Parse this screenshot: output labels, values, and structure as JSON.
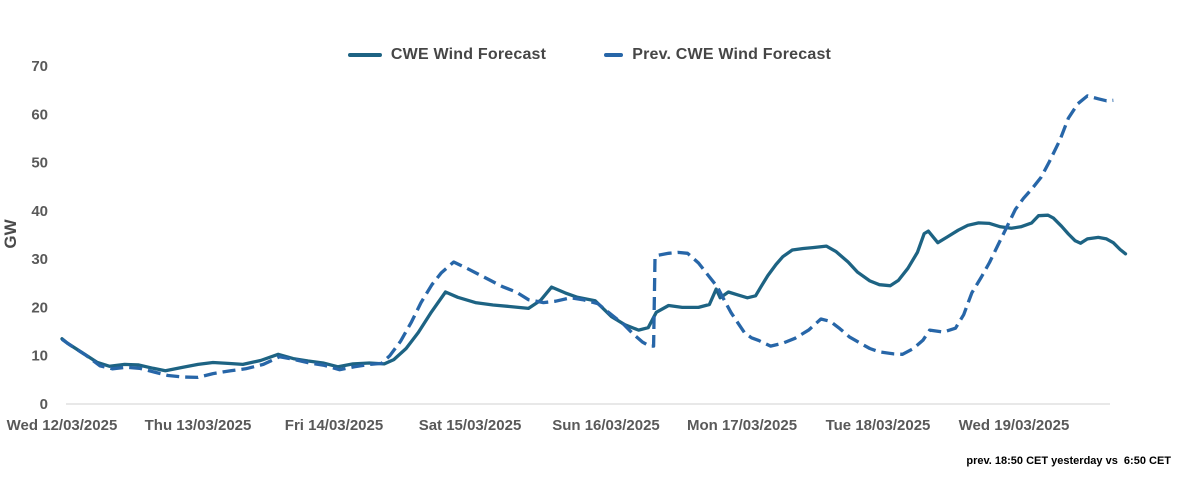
{
  "chart_data": {
    "type": "line",
    "title": "",
    "ylabel": "GW",
    "xlabel": "",
    "ylim": [
      0,
      70
    ],
    "yticks": [
      0,
      10,
      20,
      30,
      40,
      50,
      60,
      70
    ],
    "grid": false,
    "legend_position": "top-center",
    "note": "prev. 18:50 CET yesterday vs  6:50 CET",
    "x_categories": [
      "Wed 12/03/2025",
      "Thu 13/03/2025",
      "Fri 14/03/2025",
      "Sat 15/03/2025",
      "Sun 16/03/2025",
      "Mon 17/03/2025",
      "Tue 18/03/2025",
      "Wed 19/03/2025"
    ],
    "x_unit": "days-from-first-label",
    "xlim_days": [
      0,
      7.85
    ],
    "axis_color": "#d9d9d9",
    "series": [
      {
        "name": "CWE Wind Forecast",
        "style": "solid",
        "color": "#1d6383",
        "points": [
          [
            0.0,
            13.5
          ],
          [
            0.04,
            12.6
          ],
          [
            0.15,
            10.6
          ],
          [
            0.26,
            8.6
          ],
          [
            0.35,
            7.8
          ],
          [
            0.46,
            8.2
          ],
          [
            0.56,
            8.1
          ],
          [
            0.67,
            7.4
          ],
          [
            0.76,
            6.9
          ],
          [
            0.89,
            7.6
          ],
          [
            1.0,
            8.2
          ],
          [
            1.11,
            8.6
          ],
          [
            1.22,
            8.4
          ],
          [
            1.33,
            8.2
          ],
          [
            1.46,
            9.0
          ],
          [
            1.59,
            10.3
          ],
          [
            1.7,
            9.4
          ],
          [
            1.81,
            8.9
          ],
          [
            1.92,
            8.5
          ],
          [
            2.03,
            7.7
          ],
          [
            2.14,
            8.3
          ],
          [
            2.26,
            8.5
          ],
          [
            2.37,
            8.3
          ],
          [
            2.44,
            9.2
          ],
          [
            2.53,
            11.5
          ],
          [
            2.62,
            14.8
          ],
          [
            2.71,
            18.8
          ],
          [
            2.82,
            23.2
          ],
          [
            2.91,
            22.1
          ],
          [
            3.04,
            21.0
          ],
          [
            3.17,
            20.5
          ],
          [
            3.29,
            20.2
          ],
          [
            3.43,
            19.8
          ],
          [
            3.52,
            21.5
          ],
          [
            3.6,
            24.2
          ],
          [
            3.7,
            23.0
          ],
          [
            3.79,
            22.1
          ],
          [
            3.92,
            21.4
          ],
          [
            4.04,
            18.1
          ],
          [
            4.14,
            16.4
          ],
          [
            4.24,
            15.3
          ],
          [
            4.31,
            15.8
          ],
          [
            4.37,
            19.0
          ],
          [
            4.46,
            20.4
          ],
          [
            4.56,
            20.0
          ],
          [
            4.68,
            20.0
          ],
          [
            4.76,
            20.6
          ],
          [
            4.81,
            23.8
          ],
          [
            4.84,
            22.0
          ],
          [
            4.9,
            23.2
          ],
          [
            4.97,
            22.6
          ],
          [
            5.04,
            22.0
          ],
          [
            5.1,
            22.4
          ],
          [
            5.14,
            24.3
          ],
          [
            5.19,
            26.6
          ],
          [
            5.25,
            28.9
          ],
          [
            5.3,
            30.5
          ],
          [
            5.37,
            31.9
          ],
          [
            5.45,
            32.2
          ],
          [
            5.52,
            32.4
          ],
          [
            5.62,
            32.7
          ],
          [
            5.69,
            31.6
          ],
          [
            5.78,
            29.4
          ],
          [
            5.85,
            27.3
          ],
          [
            5.94,
            25.5
          ],
          [
            6.01,
            24.7
          ],
          [
            6.09,
            24.5
          ],
          [
            6.15,
            25.6
          ],
          [
            6.22,
            28.1
          ],
          [
            6.29,
            31.4
          ],
          [
            6.34,
            35.3
          ],
          [
            6.37,
            35.8
          ],
          [
            6.44,
            33.4
          ],
          [
            6.51,
            34.6
          ],
          [
            6.59,
            36.0
          ],
          [
            6.66,
            37.0
          ],
          [
            6.74,
            37.5
          ],
          [
            6.82,
            37.4
          ],
          [
            6.9,
            36.7
          ],
          [
            6.98,
            36.4
          ],
          [
            7.05,
            36.7
          ],
          [
            7.13,
            37.5
          ],
          [
            7.18,
            39.0
          ],
          [
            7.25,
            39.1
          ],
          [
            7.29,
            38.5
          ],
          [
            7.35,
            36.8
          ],
          [
            7.4,
            35.2
          ],
          [
            7.45,
            33.8
          ],
          [
            7.49,
            33.3
          ],
          [
            7.54,
            34.2
          ],
          [
            7.62,
            34.5
          ],
          [
            7.68,
            34.2
          ],
          [
            7.73,
            33.4
          ],
          [
            7.78,
            32.0
          ],
          [
            7.82,
            31.1
          ]
        ]
      },
      {
        "name": "Prev. CWE Wind Forecast",
        "style": "dashed",
        "color": "#2766a8",
        "points": [
          [
            0.0,
            13.4
          ],
          [
            0.06,
            12.2
          ],
          [
            0.17,
            10.2
          ],
          [
            0.28,
            7.9
          ],
          [
            0.37,
            7.3
          ],
          [
            0.47,
            7.6
          ],
          [
            0.57,
            7.4
          ],
          [
            0.68,
            6.6
          ],
          [
            0.78,
            5.9
          ],
          [
            0.89,
            5.6
          ],
          [
            1.0,
            5.5
          ],
          [
            1.11,
            6.3
          ],
          [
            1.24,
            6.9
          ],
          [
            1.35,
            7.3
          ],
          [
            1.48,
            8.2
          ],
          [
            1.6,
            9.8
          ],
          [
            1.71,
            9.2
          ],
          [
            1.82,
            8.5
          ],
          [
            1.93,
            8.0
          ],
          [
            2.04,
            7.1
          ],
          [
            2.15,
            7.7
          ],
          [
            2.26,
            8.2
          ],
          [
            2.35,
            8.4
          ],
          [
            2.41,
            10.0
          ],
          [
            2.49,
            13.0
          ],
          [
            2.57,
            17.0
          ],
          [
            2.64,
            21.0
          ],
          [
            2.72,
            24.7
          ],
          [
            2.79,
            27.2
          ],
          [
            2.88,
            29.4
          ],
          [
            2.97,
            28.2
          ],
          [
            3.06,
            26.9
          ],
          [
            3.15,
            25.6
          ],
          [
            3.24,
            24.3
          ],
          [
            3.34,
            23.2
          ],
          [
            3.43,
            21.6
          ],
          [
            3.54,
            21.0
          ],
          [
            3.63,
            21.3
          ],
          [
            3.74,
            22.0
          ],
          [
            3.83,
            21.6
          ],
          [
            3.94,
            20.8
          ],
          [
            4.04,
            18.5
          ],
          [
            4.13,
            16.5
          ],
          [
            4.2,
            14.5
          ],
          [
            4.27,
            12.8
          ],
          [
            4.32,
            12.0
          ],
          [
            4.35,
            12.0
          ],
          [
            4.36,
            30.3
          ],
          [
            4.38,
            30.8
          ],
          [
            4.46,
            31.2
          ],
          [
            4.53,
            31.4
          ],
          [
            4.6,
            31.2
          ],
          [
            4.68,
            29.2
          ],
          [
            4.75,
            26.7
          ],
          [
            4.82,
            24.2
          ],
          [
            4.87,
            21.5
          ],
          [
            4.92,
            18.9
          ],
          [
            4.97,
            16.8
          ],
          [
            5.02,
            14.7
          ],
          [
            5.07,
            13.7
          ],
          [
            5.12,
            13.2
          ],
          [
            5.21,
            12.0
          ],
          [
            5.3,
            12.6
          ],
          [
            5.39,
            13.6
          ],
          [
            5.49,
            15.3
          ],
          [
            5.58,
            17.6
          ],
          [
            5.65,
            17.1
          ],
          [
            5.72,
            15.6
          ],
          [
            5.79,
            13.9
          ],
          [
            5.87,
            12.6
          ],
          [
            5.94,
            11.5
          ],
          [
            6.01,
            10.8
          ],
          [
            6.11,
            10.4
          ],
          [
            6.18,
            10.3
          ],
          [
            6.26,
            11.5
          ],
          [
            6.33,
            13.2
          ],
          [
            6.38,
            15.3
          ],
          [
            6.48,
            14.9
          ],
          [
            6.57,
            15.7
          ],
          [
            6.63,
            18.5
          ],
          [
            6.69,
            23.0
          ],
          [
            6.76,
            26.3
          ],
          [
            6.82,
            29.3
          ],
          [
            6.88,
            32.8
          ],
          [
            6.96,
            37.4
          ],
          [
            7.01,
            40.3
          ],
          [
            7.07,
            42.6
          ],
          [
            7.13,
            44.5
          ],
          [
            7.2,
            47.0
          ],
          [
            7.26,
            50.2
          ],
          [
            7.34,
            54.8
          ],
          [
            7.4,
            59.2
          ],
          [
            7.47,
            62.2
          ],
          [
            7.54,
            63.8
          ],
          [
            7.62,
            63.2
          ],
          [
            7.68,
            62.8
          ],
          [
            7.73,
            62.9
          ]
        ]
      }
    ]
  }
}
